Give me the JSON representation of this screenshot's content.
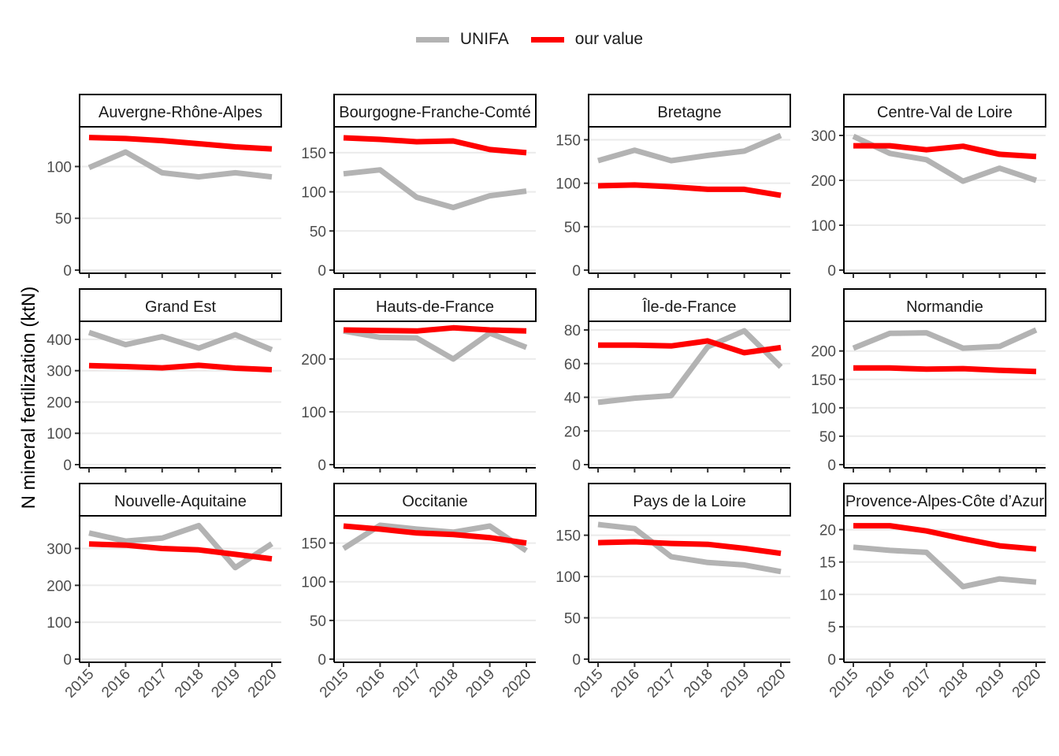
{
  "chart_data": {
    "type": "line",
    "ylabel": "N mineral fertilization (ktN)",
    "xlabel": "",
    "x": [
      2015,
      2016,
      2017,
      2018,
      2019,
      2020
    ],
    "legend_position": "top",
    "legend": [
      {
        "name": "UNIFA",
        "color": "#b3b3b3"
      },
      {
        "name": "our value",
        "color": "#ff0000"
      }
    ],
    "grid": "horizontal major",
    "panels": [
      {
        "title": "Auvergne-Rhône-Alpes",
        "ylim": [
          0,
          130
        ],
        "yticks": [
          0,
          50,
          100
        ],
        "series": [
          {
            "name": "UNIFA",
            "values": [
              99,
              114,
              94,
              90,
              94,
              90
            ]
          },
          {
            "name": "our value",
            "values": [
              128,
              127,
              125,
              122,
              119,
              117
            ]
          }
        ]
      },
      {
        "title": "Bourgogne-Franche-Comté",
        "ylim": [
          0,
          172
        ],
        "yticks": [
          0,
          50,
          100,
          150
        ],
        "series": [
          {
            "name": "UNIFA",
            "values": [
              123,
              128,
              93,
              80,
              95,
              101
            ]
          },
          {
            "name": "our value",
            "values": [
              169,
              167,
              164,
              165,
              154,
              150
            ]
          }
        ]
      },
      {
        "title": "Bretagne",
        "ylim": [
          0,
          155
        ],
        "yticks": [
          0,
          50,
          100,
          150
        ],
        "series": [
          {
            "name": "UNIFA",
            "values": [
              126,
              138,
              126,
              132,
              137,
              155
            ]
          },
          {
            "name": "our value",
            "values": [
              97,
              98,
              96,
              93,
              93,
              86
            ]
          }
        ]
      },
      {
        "title": "Centre-Val de Loire",
        "ylim": [
          0,
          300
        ],
        "yticks": [
          0,
          100,
          200,
          300
        ],
        "series": [
          {
            "name": "UNIFA",
            "values": [
              298,
              260,
              246,
              198,
              227,
              200
            ]
          },
          {
            "name": "our value",
            "values": [
              277,
              277,
              268,
              276,
              258,
              253
            ]
          }
        ]
      },
      {
        "title": "Grand Est",
        "ylim": [
          0,
          430
        ],
        "yticks": [
          0,
          100,
          200,
          300,
          400
        ],
        "series": [
          {
            "name": "UNIFA",
            "values": [
              422,
              383,
              409,
              372,
              415,
              367
            ]
          },
          {
            "name": "our value",
            "values": [
              316,
              313,
              309,
              317,
              308,
              303
            ]
          }
        ]
      },
      {
        "title": "Hauts-de-France",
        "ylim": [
          0,
          255
        ],
        "yticks": [
          0,
          100,
          200
        ],
        "series": [
          {
            "name": "UNIFA",
            "values": [
              253,
              241,
              240,
              200,
              249,
              222
            ]
          },
          {
            "name": "our value",
            "values": [
              255,
              254,
              253,
              259,
              255,
              253
            ]
          }
        ]
      },
      {
        "title": "Île-de-France",
        "ylim": [
          0,
          80
        ],
        "yticks": [
          0,
          20,
          40,
          60,
          80
        ],
        "series": [
          {
            "name": "UNIFA",
            "values": [
              37,
              39.5,
              41,
              70,
              79.5,
              58
            ]
          },
          {
            "name": "our value",
            "values": [
              71,
              71,
              70.5,
              73.5,
              66.5,
              69.5
            ]
          }
        ]
      },
      {
        "title": "Normandie",
        "ylim": [
          0,
          237
        ],
        "yticks": [
          0,
          50,
          100,
          150,
          200
        ],
        "series": [
          {
            "name": "UNIFA",
            "values": [
              205,
              231,
              232,
              205,
              208,
              237
            ]
          },
          {
            "name": "our value",
            "values": [
              170,
              170,
              168,
              169,
              166,
              164
            ]
          }
        ]
      },
      {
        "title": "Nouvelle-Aquitaine",
        "ylim": [
          0,
          365
        ],
        "yticks": [
          0,
          100,
          200,
          300
        ],
        "series": [
          {
            "name": "UNIFA",
            "values": [
              342,
              320,
              328,
              362,
              248,
              313
            ]
          },
          {
            "name": "our value",
            "values": [
              312,
              309,
              300,
              296,
              284,
              272
            ]
          }
        ]
      },
      {
        "title": "Occitanie",
        "ylim": [
          0,
          174
        ],
        "yticks": [
          0,
          50,
          100,
          150
        ],
        "series": [
          {
            "name": "UNIFA",
            "values": [
              143,
              173,
              168,
              164,
              172,
              140
            ]
          },
          {
            "name": "our value",
            "values": [
              172,
              168,
              163,
              161,
              157,
              150
            ]
          }
        ]
      },
      {
        "title": "Pays de la Loire",
        "ylim": [
          0,
          163
        ],
        "yticks": [
          0,
          50,
          100,
          150
        ],
        "series": [
          {
            "name": "UNIFA",
            "values": [
              163,
              158,
              124,
              117,
              114,
              106
            ]
          },
          {
            "name": "our value",
            "values": [
              141,
              142,
              140,
              139,
              134,
              128
            ]
          }
        ]
      },
      {
        "title": "Provence-Alpes-Côte d’Azur",
        "ylim": [
          0,
          20.8
        ],
        "yticks": [
          0,
          5,
          10,
          15,
          20
        ],
        "series": [
          {
            "name": "UNIFA",
            "values": [
              17.3,
              16.8,
              16.5,
              11.2,
              12.4,
              11.9
            ]
          },
          {
            "name": "our value",
            "values": [
              20.6,
              20.6,
              19.8,
              18.6,
              17.5,
              17
            ]
          }
        ]
      }
    ]
  }
}
